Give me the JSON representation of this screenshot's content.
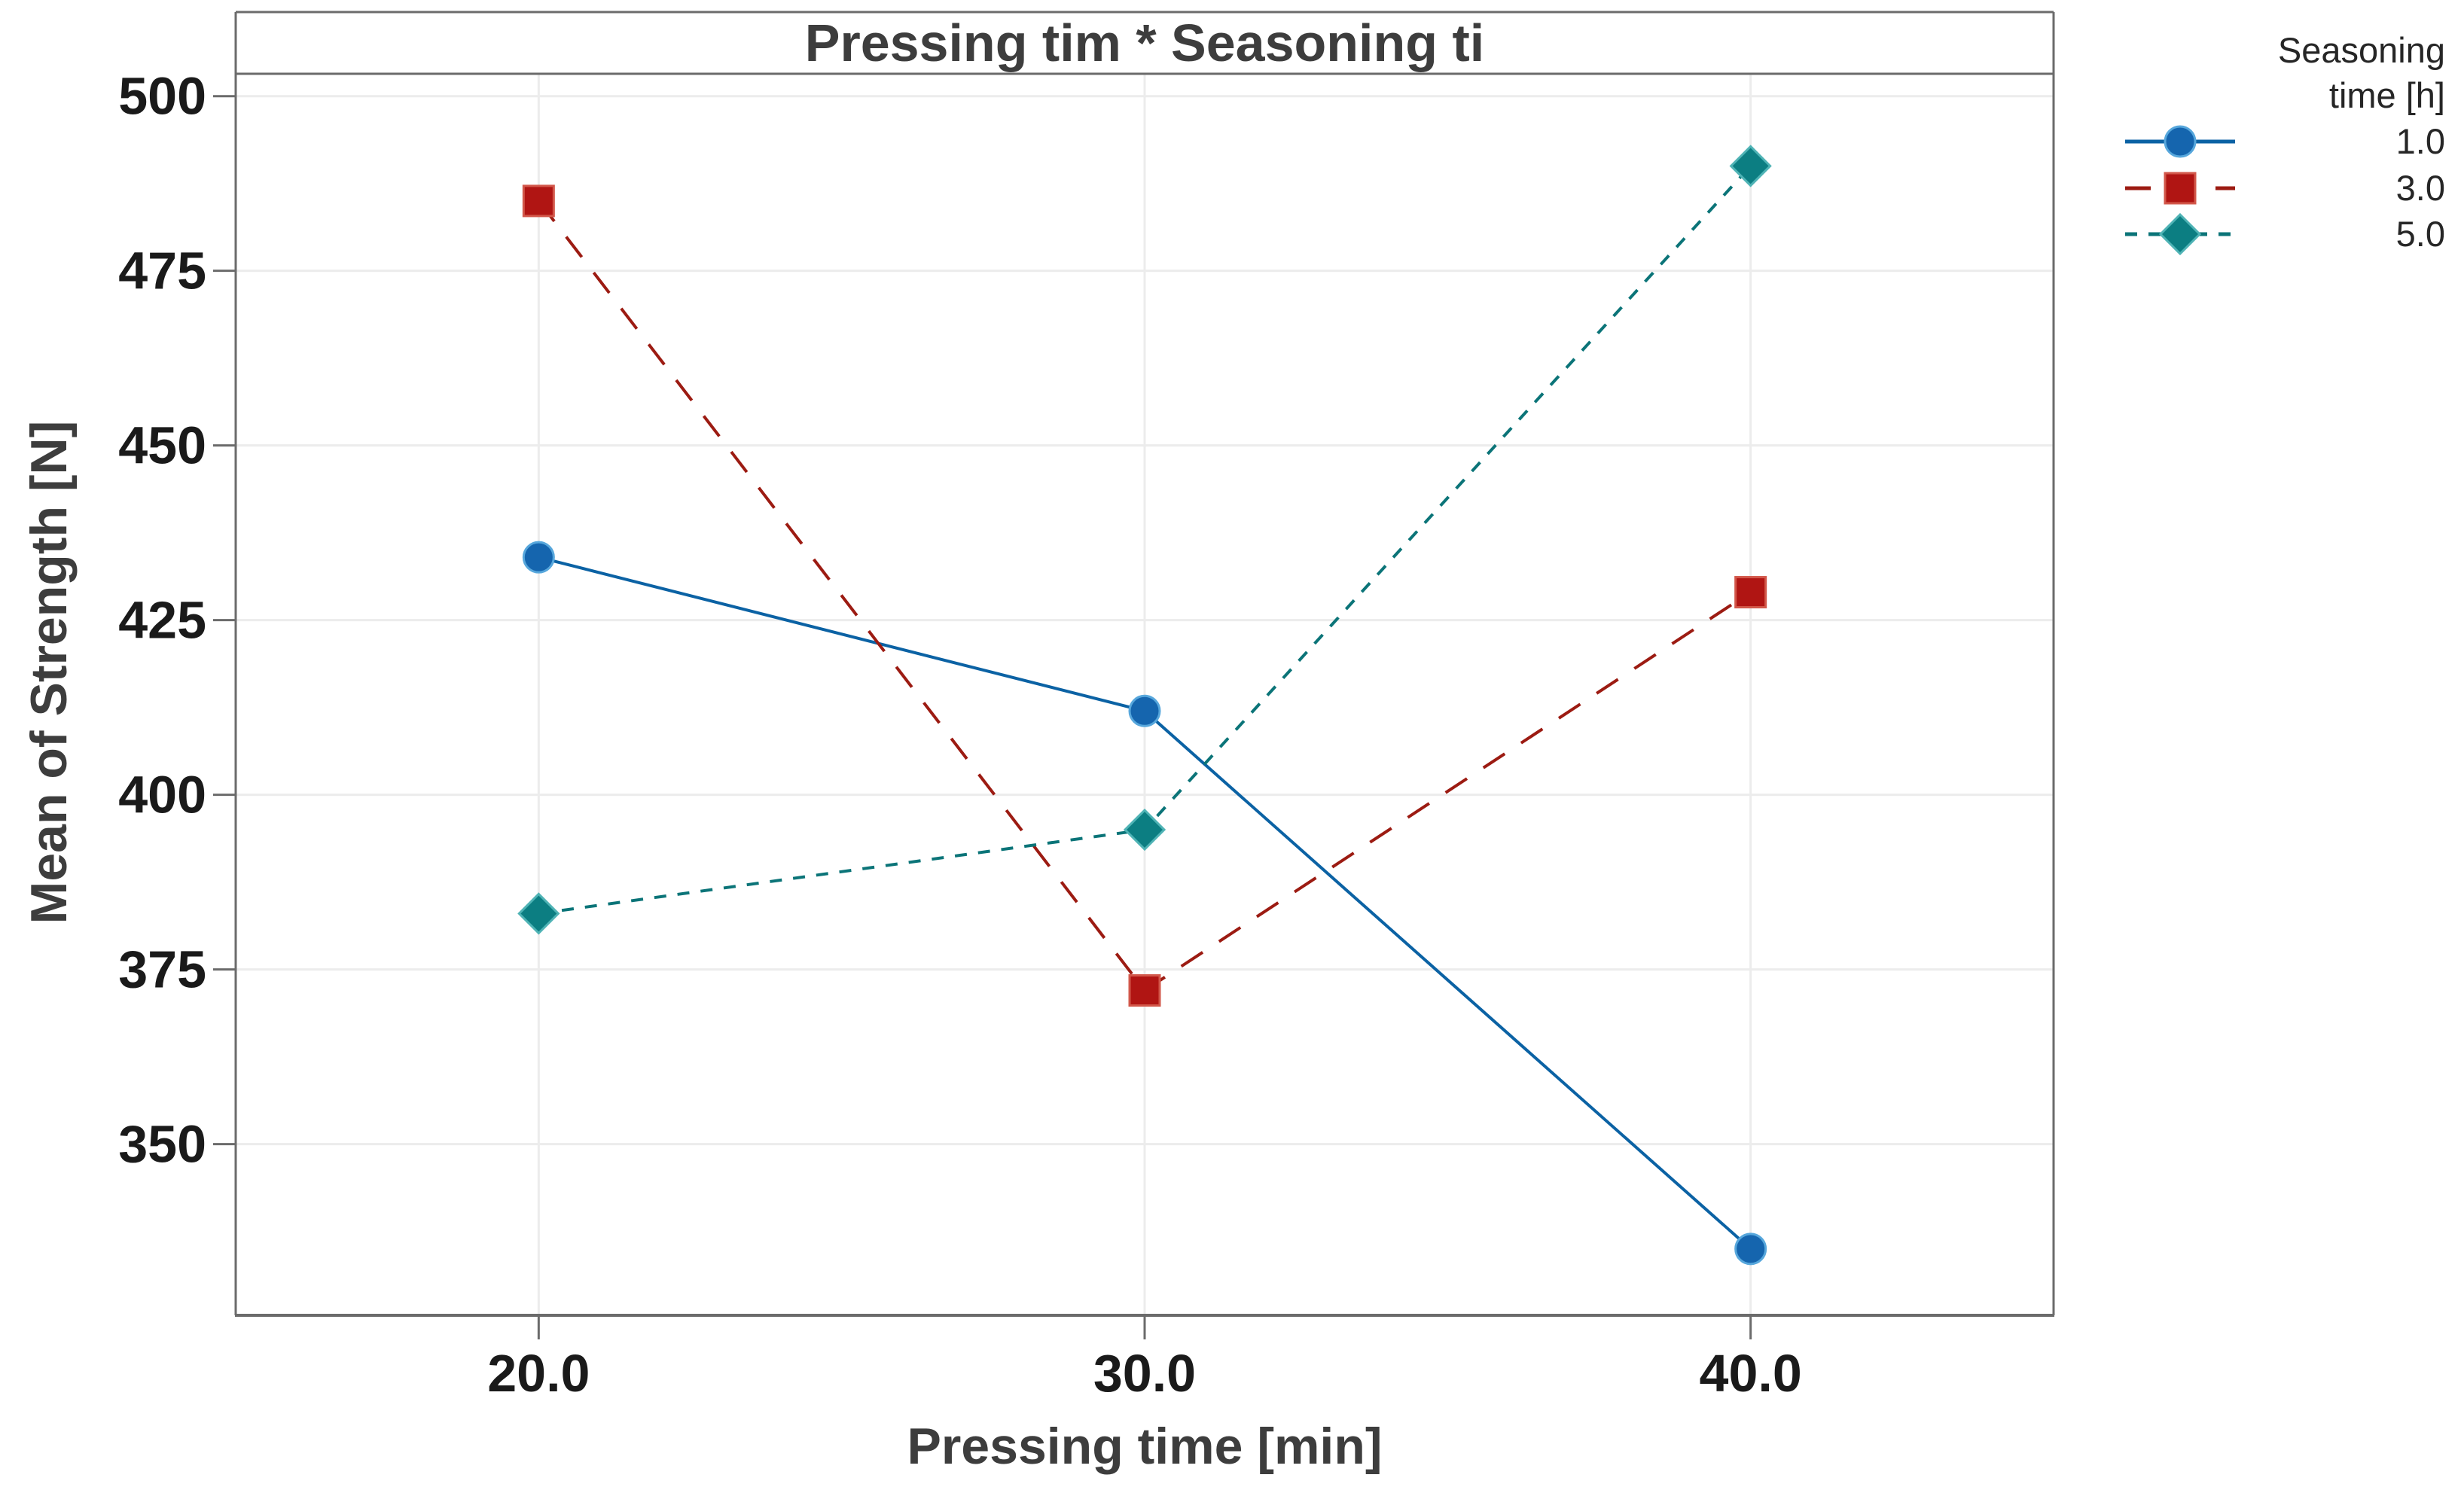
{
  "chart_data": {
    "type": "line",
    "title": "Pressing tim * Seasoning ti",
    "xlabel": "Pressing time [min]",
    "ylabel": "Mean of Strength [N]",
    "x": [
      20,
      30,
      40
    ],
    "x_tick_labels": [
      "20.0",
      "30.0",
      "40.0"
    ],
    "y_ticks": [
      350,
      375,
      400,
      425,
      450,
      475,
      500
    ],
    "y_tick_labels": [
      "350",
      "375",
      "400",
      "425",
      "450",
      "475",
      "500"
    ],
    "xlim": [
      15,
      45
    ],
    "ylim": [
      325.5,
      503.2
    ],
    "grid": true,
    "legend": {
      "position": "top-right",
      "title_lines": [
        "Seasoning",
        "time [h]"
      ]
    },
    "series": [
      {
        "label": "1.0",
        "marker": "circle",
        "line_style": "solid",
        "color": "#1565AE",
        "line_color": "#0B62A4",
        "edge_color": "#57A7DC",
        "values": [
          434,
          412,
          335
        ]
      },
      {
        "label": "3.0",
        "marker": "square",
        "line_style": "dashed",
        "color": "#B01513",
        "line_color": "#9C1B12",
        "edge_color": "#D2574A",
        "values": [
          485,
          372,
          429
        ]
      },
      {
        "label": "5.0",
        "marker": "diamond",
        "line_style": "short-dash",
        "color": "#0C7E82",
        "line_color": "#0B7478",
        "edge_color": "#4FB3B5",
        "values": [
          383,
          395,
          490
        ]
      }
    ]
  },
  "colors": {
    "background": "#FFFFFF",
    "grid": "#ECECEC",
    "border": "#6B6B6B",
    "tick_text": "#1A1A1A",
    "title_text": "#3D3D3D",
    "legend_text": "#262626"
  }
}
